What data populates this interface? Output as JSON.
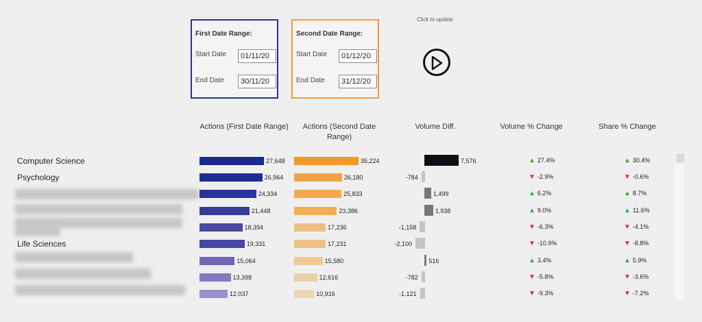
{
  "first_range": {
    "title": "First Date Range:",
    "start_label": "Start Date",
    "start_value": "01/11/20",
    "end_label": "End Date",
    "end_value": "30/11/20"
  },
  "second_range": {
    "title": "Second Date Range:",
    "start_label": "Start Date",
    "start_value": "01/12/20",
    "end_label": "End Date",
    "end_value": "31/12/20"
  },
  "update_label": "Click to update",
  "headers": {
    "first": "Actions (First Date Range)",
    "second": "Actions (Second Date Range)",
    "diff": "Volume Diff.",
    "vol_pct": "Volume % Change",
    "share_pct": "Share % Change"
  },
  "categories": [
    "Computer Science",
    "Psychology",
    "Life Sciences"
  ],
  "rows": [
    {
      "first": "27,648",
      "second": "35,224",
      "diff": "7,576",
      "vol": "27.4%",
      "vol_dir": "up",
      "share": "30.4%",
      "share_dir": "up"
    },
    {
      "first": "26,964",
      "second": "26,180",
      "diff": "-784",
      "vol": "-2.9%",
      "vol_dir": "down",
      "share": "-0.6%",
      "share_dir": "down"
    },
    {
      "first": "24,334",
      "second": "25,833",
      "diff": "1,499",
      "vol": "6.2%",
      "vol_dir": "up",
      "share": "8.7%",
      "share_dir": "up"
    },
    {
      "first": "21,448",
      "second": "23,386",
      "diff": "1,938",
      "vol": "9.0%",
      "vol_dir": "up",
      "share": "11.6%",
      "share_dir": "up"
    },
    {
      "first": "18,394",
      "second": "17,236",
      "diff": "-1,158",
      "vol": "-6.3%",
      "vol_dir": "down",
      "share": "-4.1%",
      "share_dir": "down"
    },
    {
      "first": "19,331",
      "second": "17,231",
      "diff": "-2,100",
      "vol": "-10.9%",
      "vol_dir": "down",
      "share": "-8.8%",
      "share_dir": "down"
    },
    {
      "first": "15,064",
      "second": "15,580",
      "diff": "516",
      "vol": "3.4%",
      "vol_dir": "up",
      "share": "5.9%",
      "share_dir": "up"
    },
    {
      "first": "13,398",
      "second": "12,616",
      "diff": "-782",
      "vol": "-5.8%",
      "vol_dir": "down",
      "share": "-3.6%",
      "share_dir": "down"
    },
    {
      "first": "12,037",
      "second": "10,916",
      "diff": "-1,121",
      "vol": "-9.3%",
      "vol_dir": "down",
      "share": "-7.2%",
      "share_dir": "down"
    }
  ],
  "icons": {
    "play": "play-circle-icon",
    "up": "triangle-up-icon",
    "down": "triangle-down-icon"
  },
  "colors": {
    "first_box": "#2b2f86",
    "second_box": "#ee9a3a",
    "up": "#3daa3d",
    "down": "#c8344a",
    "diff_positive_max": "#0d0d14",
    "diff_negative": "#c4c4c4"
  }
}
